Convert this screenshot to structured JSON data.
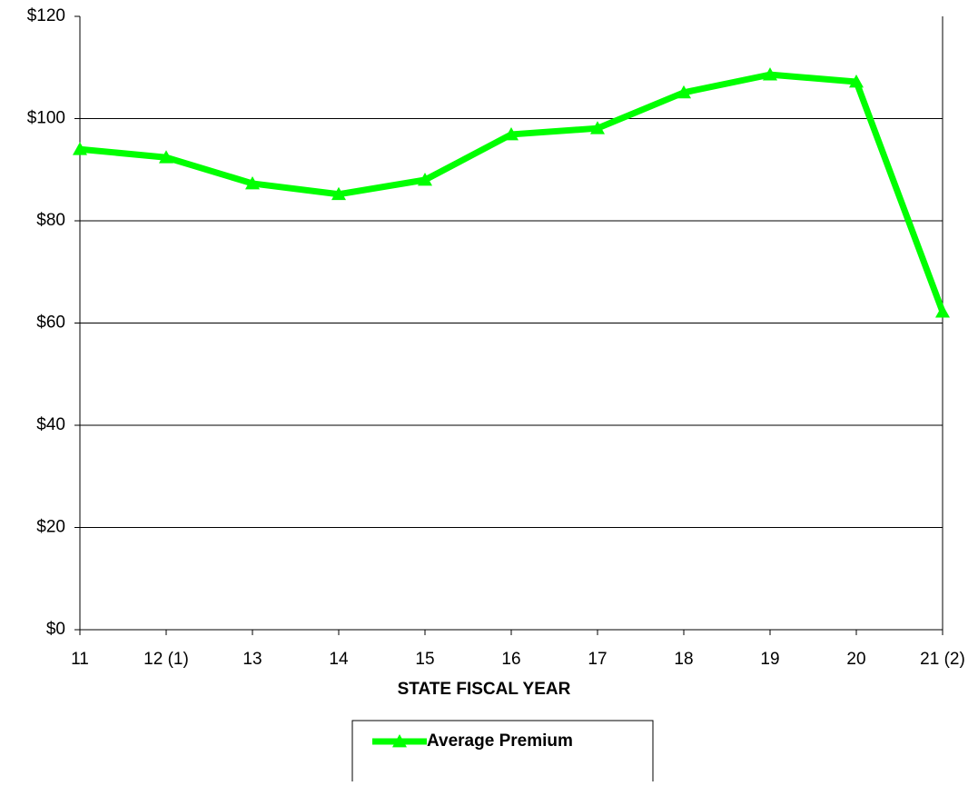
{
  "chart_data": {
    "type": "line",
    "x_label": "STATE FISCAL YEAR",
    "categories": [
      "11",
      "12 (1)",
      "13",
      "14",
      "15",
      "16",
      "17",
      "18",
      "19",
      "20",
      "21 (2)"
    ],
    "series": [
      {
        "name": "Average Premium",
        "color": "#00ff00",
        "values": [
          94,
          92.4,
          87.3,
          85.2,
          88,
          96.9,
          98.1,
          105.1,
          108.6,
          107.2,
          62.2
        ]
      }
    ],
    "ylim": [
      0,
      120
    ],
    "yticks": [
      {
        "value": 0,
        "label": "$0"
      },
      {
        "value": 20,
        "label": "$20"
      },
      {
        "value": 40,
        "label": "$40"
      },
      {
        "value": 60,
        "label": "$60"
      },
      {
        "value": 80,
        "label": "$80"
      },
      {
        "value": 100,
        "label": "$100"
      },
      {
        "value": 120,
        "label": "$120"
      }
    ],
    "grid": true
  }
}
